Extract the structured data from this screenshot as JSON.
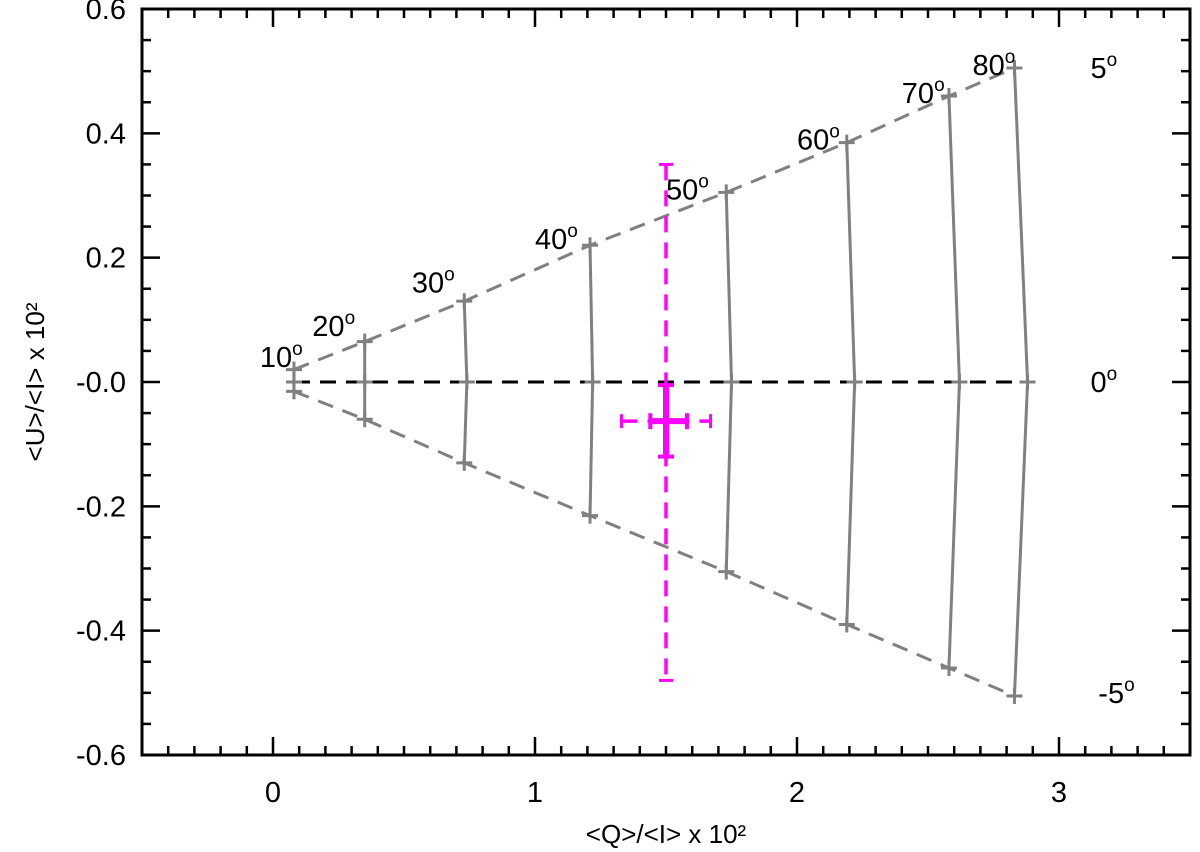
{
  "chart_data": {
    "type": "scatter",
    "title": "",
    "xlabel": "<Q>/<I> x 10²",
    "ylabel": "<U>/<I> x 10²",
    "xlim": [
      -0.5,
      3.5
    ],
    "ylim": [
      -0.6,
      0.6
    ],
    "x_ticks": [
      0,
      1,
      2,
      3
    ],
    "x_tick_labels": [
      "0",
      "1",
      "2",
      "3"
    ],
    "y_ticks": [
      0.6,
      0.4,
      0.2,
      0.0,
      -0.2,
      -0.4,
      -0.6
    ],
    "y_tick_labels": [
      "0.6",
      "0.4",
      "0.2",
      "-0.0",
      "-0.2",
      "-0.4",
      "-0.6"
    ],
    "grid": false,
    "series": [
      {
        "style": "dashed",
        "color": "#808080",
        "points": [
          [
            0.08,
            0.02
          ],
          [
            0.35,
            0.065
          ],
          [
            0.73,
            0.13
          ],
          [
            1.21,
            0.22
          ],
          [
            1.73,
            0.305
          ],
          [
            2.19,
            0.385
          ],
          [
            2.58,
            0.46
          ],
          [
            2.83,
            0.505
          ]
        ]
      },
      {
        "style": "dashed",
        "color": "#000000",
        "points": [
          [
            0.08,
            0.0
          ],
          [
            0.35,
            0.0
          ],
          [
            0.74,
            0.0
          ],
          [
            1.22,
            0.0
          ],
          [
            1.75,
            0.0
          ],
          [
            2.22,
            0.0
          ],
          [
            2.62,
            0.0
          ],
          [
            2.88,
            0.0
          ]
        ]
      },
      {
        "style": "dashed",
        "color": "#808080",
        "points": [
          [
            0.08,
            -0.015
          ],
          [
            0.35,
            -0.06
          ],
          [
            0.73,
            -0.13
          ],
          [
            1.21,
            -0.215
          ],
          [
            1.73,
            -0.305
          ],
          [
            2.19,
            -0.39
          ],
          [
            2.58,
            -0.46
          ],
          [
            2.83,
            -0.505
          ]
        ]
      }
    ],
    "measurement": {
      "color": "#ff00ff",
      "x": 1.5,
      "y": -0.063,
      "x_err_small": [
        1.44,
        1.58
      ],
      "x_err_large": [
        1.33,
        1.67
      ],
      "y_err_small": [
        -0.12,
        -0.005
      ],
      "y_err_large": [
        -0.48,
        0.35
      ]
    },
    "annotations": [
      {
        "text": "10",
        "sup": "o",
        "x": -0.05,
        "y": 0.04
      },
      {
        "text": "20",
        "sup": "o",
        "x": 0.15,
        "y": 0.09
      },
      {
        "text": "30",
        "sup": "o",
        "x": 0.53,
        "y": 0.16
      },
      {
        "text": "40",
        "sup": "o",
        "x": 1.0,
        "y": 0.23
      },
      {
        "text": "50",
        "sup": "o",
        "x": 1.5,
        "y": 0.31
      },
      {
        "text": "60",
        "sup": "o",
        "x": 2.0,
        "y": 0.39
      },
      {
        "text": "70",
        "sup": "o",
        "x": 2.4,
        "y": 0.465
      },
      {
        "text": "80",
        "sup": "o",
        "x": 2.67,
        "y": 0.51
      },
      {
        "text": "5",
        "sup": "o",
        "x": 3.12,
        "y": 0.505
      },
      {
        "text": "0",
        "sup": "o",
        "x": 3.12,
        "y": 0.0
      },
      {
        "text": "-5",
        "sup": "o",
        "x": 3.15,
        "y": -0.5
      }
    ]
  }
}
